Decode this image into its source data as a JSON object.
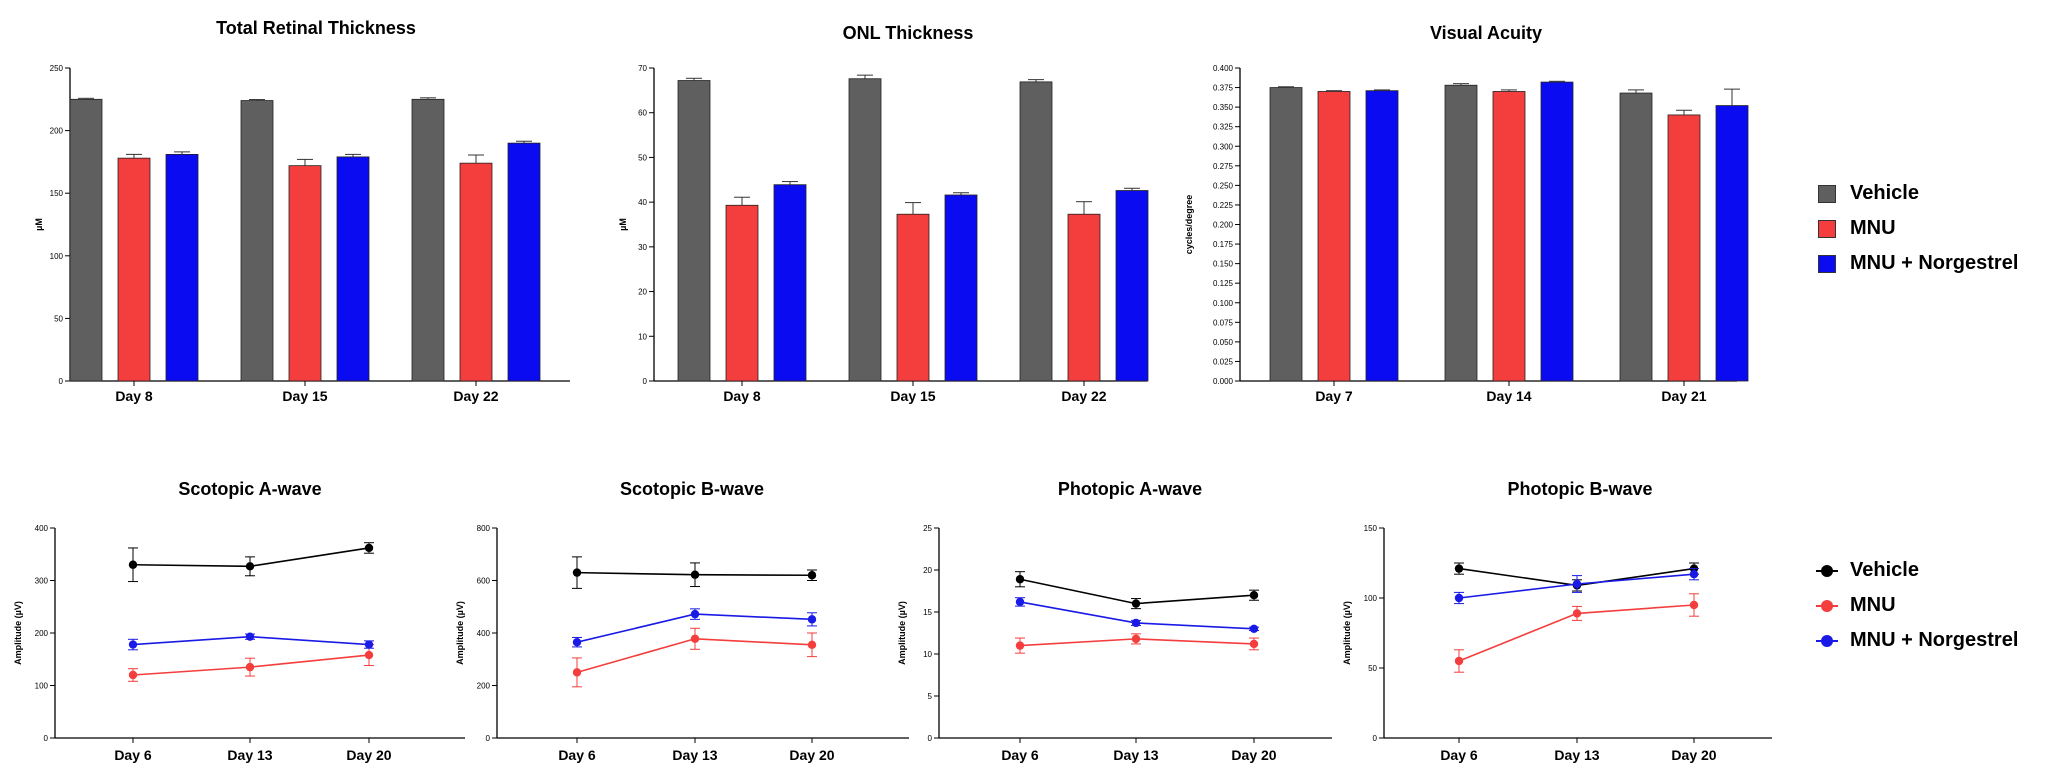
{
  "colors": {
    "Vehicle": "#5f5f5f",
    "MNU": "#f43d3d",
    "MNU + Norgestrel": "#0b0bf2",
    "Vehicle_line": "#000000",
    "MNU_line": "#f43d3d",
    "Norg_line": "#1a1ae6"
  },
  "legends": {
    "bar": [
      "Vehicle",
      "MNU",
      "MNU + Norgestrel"
    ],
    "line": [
      "Vehicle",
      "MNU",
      "MNU + Norgestrel"
    ]
  },
  "chart_data": [
    {
      "type": "bar",
      "title": "Total Retinal Thickness",
      "ylabel": "µM",
      "categories": [
        "Day 8",
        "Day 15",
        "Day 22"
      ],
      "ylim": [
        0,
        250
      ],
      "yticks": [
        0,
        50,
        100,
        150,
        200,
        250
      ],
      "ytick_labels": [
        "0",
        "50",
        "100",
        "150",
        "200",
        "250"
      ],
      "series": [
        {
          "name": "Vehicle",
          "values": [
            225,
            224,
            225
          ],
          "errors": [
            0.8,
            0.8,
            1.2
          ]
        },
        {
          "name": "MNU",
          "values": [
            178,
            172,
            174
          ],
          "errors": [
            3,
            5,
            6.5
          ]
        },
        {
          "name": "MNU + Norgestrel",
          "values": [
            181,
            179,
            190
          ],
          "errors": [
            2,
            2,
            1.5
          ]
        }
      ]
    },
    {
      "type": "bar",
      "title": "ONL Thickness",
      "ylabel": "µM",
      "categories": [
        "Day 8",
        "Day 15",
        "Day 22"
      ],
      "ylim": [
        0,
        70
      ],
      "yticks": [
        0,
        10,
        20,
        30,
        40,
        50,
        60,
        70
      ],
      "ytick_labels": [
        "0",
        "10",
        "20",
        "30",
        "40",
        "50",
        "60",
        "70"
      ],
      "series": [
        {
          "name": "Vehicle",
          "values": [
            67.2,
            67.6,
            66.9
          ],
          "errors": [
            0.5,
            0.8,
            0.5
          ]
        },
        {
          "name": "MNU",
          "values": [
            39.3,
            37.3,
            37.3
          ],
          "errors": [
            1.8,
            2.6,
            2.8
          ]
        },
        {
          "name": "MNU + Norgestrel",
          "values": [
            43.9,
            41.6,
            42.6
          ],
          "errors": [
            0.7,
            0.5,
            0.5
          ]
        }
      ]
    },
    {
      "type": "bar",
      "title": "Visual Acuity",
      "ylabel": "cycles/degree",
      "categories": [
        "Day 7",
        "Day 14",
        "Day 21"
      ],
      "ylim": [
        0,
        0.4
      ],
      "yticks": [
        0,
        0.025,
        0.05,
        0.075,
        0.1,
        0.125,
        0.15,
        0.175,
        0.2,
        0.225,
        0.25,
        0.275,
        0.3,
        0.325,
        0.35,
        0.375,
        0.4
      ],
      "ytick_labels": [
        "0.000",
        "0.025",
        "0.050",
        "0.075",
        "0.100",
        "0.125",
        "0.150",
        "0.175",
        "0.200",
        "0.225",
        "0.250",
        "0.275",
        "0.300",
        "0.325",
        "0.350",
        "0.375",
        "0.400"
      ],
      "series": [
        {
          "name": "Vehicle",
          "values": [
            0.375,
            0.378,
            0.368
          ],
          "errors": [
            0.001,
            0.002,
            0.004
          ]
        },
        {
          "name": "MNU",
          "values": [
            0.37,
            0.37,
            0.34
          ],
          "errors": [
            0.001,
            0.002,
            0.006
          ]
        },
        {
          "name": "MNU + Norgestrel",
          "values": [
            0.371,
            0.382,
            0.352
          ],
          "errors": [
            0.001,
            0.001,
            0.021
          ]
        }
      ]
    },
    {
      "type": "line",
      "title": "Scotopic A-wave",
      "ylabel": "Amplitude (µV)",
      "categories": [
        "Day 6",
        "Day 13",
        "Day 20"
      ],
      "ylim": [
        0,
        400
      ],
      "yticks": [
        0,
        100,
        200,
        300,
        400
      ],
      "ytick_labels": [
        "0",
        "100",
        "200",
        "300",
        "400"
      ],
      "series": [
        {
          "name": "Vehicle",
          "values": [
            330,
            327,
            362
          ],
          "errors": [
            32,
            18,
            10
          ]
        },
        {
          "name": "MNU",
          "values": [
            120,
            135,
            158
          ],
          "errors": [
            12,
            17,
            20
          ]
        },
        {
          "name": "MNU + Norgestrel",
          "values": [
            178,
            193,
            178
          ],
          "errors": [
            10,
            5,
            7
          ]
        }
      ]
    },
    {
      "type": "line",
      "title": "Scotopic B-wave",
      "ylabel": "Amplitude (µV)",
      "categories": [
        "Day 6",
        "Day 13",
        "Day 20"
      ],
      "ylim": [
        0,
        800
      ],
      "yticks": [
        0,
        200,
        400,
        600,
        800
      ],
      "ytick_labels": [
        "0",
        "200",
        "400",
        "600",
        "800"
      ],
      "series": [
        {
          "name": "Vehicle",
          "values": [
            630,
            622,
            620
          ],
          "errors": [
            60,
            45,
            20
          ]
        },
        {
          "name": "MNU",
          "values": [
            250,
            378,
            355
          ],
          "errors": [
            55,
            40,
            45
          ]
        },
        {
          "name": "MNU + Norgestrel",
          "values": [
            365,
            472,
            452
          ],
          "errors": [
            18,
            20,
            25
          ]
        }
      ]
    },
    {
      "type": "line",
      "title": "Photopic A-wave",
      "ylabel": "Amplitude (µV)",
      "categories": [
        "Day 6",
        "Day 13",
        "Day 20"
      ],
      "ylim": [
        0,
        25
      ],
      "yticks": [
        0,
        5,
        10,
        15,
        20,
        25
      ],
      "ytick_labels": [
        "0",
        "5",
        "10",
        "15",
        "20",
        "25"
      ],
      "series": [
        {
          "name": "Vehicle",
          "values": [
            18.9,
            16.0,
            17.0
          ],
          "errors": [
            0.9,
            0.6,
            0.6
          ]
        },
        {
          "name": "MNU",
          "values": [
            11.0,
            11.8,
            11.2
          ],
          "errors": [
            0.9,
            0.6,
            0.7
          ]
        },
        {
          "name": "MNU + Norgestrel",
          "values": [
            16.2,
            13.7,
            13.0
          ],
          "errors": [
            0.5,
            0.3,
            0.2
          ]
        }
      ]
    },
    {
      "type": "line",
      "title": "Photopic B-wave",
      "ylabel": "Amplitude (µV)",
      "categories": [
        "Day 6",
        "Day 13",
        "Day 20"
      ],
      "ylim": [
        0,
        150
      ],
      "yticks": [
        0,
        50,
        100,
        150
      ],
      "ytick_labels": [
        "0",
        "50",
        "100",
        "150"
      ],
      "series": [
        {
          "name": "Vehicle",
          "values": [
            121,
            109,
            121
          ],
          "errors": [
            4,
            4,
            4
          ]
        },
        {
          "name": "MNU",
          "values": [
            55,
            89,
            95
          ],
          "errors": [
            8,
            5,
            8
          ]
        },
        {
          "name": "MNU + Norgestrel",
          "values": [
            100,
            110,
            117
          ],
          "errors": [
            4,
            6,
            4
          ]
        }
      ]
    }
  ]
}
